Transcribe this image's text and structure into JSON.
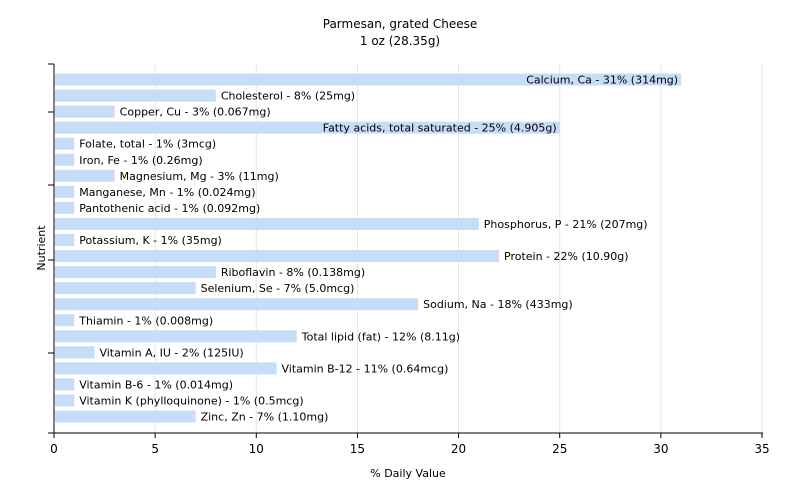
{
  "chart_data": {
    "type": "bar",
    "orientation": "horizontal",
    "title": "Parmesan, grated Cheese",
    "subtitle": "1 oz (28.35g)",
    "xlabel": "% Daily Value",
    "ylabel": "Nutrient",
    "xlim": [
      0,
      35
    ],
    "xticks": [
      0,
      5,
      10,
      15,
      20,
      25,
      30,
      35
    ],
    "grid": "vertical",
    "bar_color": "#c6dcf7",
    "gridline_color": "#e4e4e4",
    "categories": [
      "Calcium, Ca",
      "Cholesterol",
      "Copper, Cu",
      "Fatty acids, total saturated",
      "Folate, total",
      "Iron, Fe",
      "Magnesium, Mg",
      "Manganese, Mn",
      "Pantothenic acid",
      "Phosphorus, P",
      "Potassium, K",
      "Protein",
      "Riboflavin",
      "Selenium, Se",
      "Sodium, Na",
      "Thiamin",
      "Total lipid (fat)",
      "Vitamin A, IU",
      "Vitamin B-12",
      "Vitamin B-6",
      "Vitamin K (phylloquinone)",
      "Zinc, Zn"
    ],
    "values": [
      31,
      8,
      3,
      25,
      1,
      1,
      3,
      1,
      1,
      21,
      1,
      22,
      8,
      7,
      18,
      1,
      12,
      2,
      11,
      1,
      1,
      7
    ],
    "labels": [
      "Calcium, Ca - 31% (314mg)",
      "Cholesterol - 8% (25mg)",
      "Copper, Cu - 3% (0.067mg)",
      "Fatty acids, total saturated - 25% (4.905g)",
      "Folate, total - 1% (3mcg)",
      "Iron, Fe - 1% (0.26mg)",
      "Magnesium, Mg - 3% (11mg)",
      "Manganese, Mn - 1% (0.024mg)",
      "Pantothenic acid - 1% (0.092mg)",
      "Phosphorus, P - 21% (207mg)",
      "Potassium, K - 1% (35mg)",
      "Protein - 22% (10.90g)",
      "Riboflavin - 8% (0.138mg)",
      "Selenium, Se - 7% (5.0mcg)",
      "Sodium, Na - 18% (433mg)",
      "Thiamin - 1% (0.008mg)",
      "Total lipid (fat) - 12% (8.11g)",
      "Vitamin A, IU - 2% (125IU)",
      "Vitamin B-12 - 11% (0.64mcg)",
      "Vitamin B-6 - 1% (0.014mg)",
      "Vitamin K (phylloquinone) - 1% (0.5mcg)",
      "Zinc, Zn - 7% (1.10mg)"
    ],
    "label_inside": [
      true,
      false,
      false,
      true,
      false,
      false,
      false,
      false,
      false,
      false,
      false,
      false,
      false,
      false,
      false,
      false,
      false,
      false,
      false,
      false,
      false,
      false
    ]
  }
}
